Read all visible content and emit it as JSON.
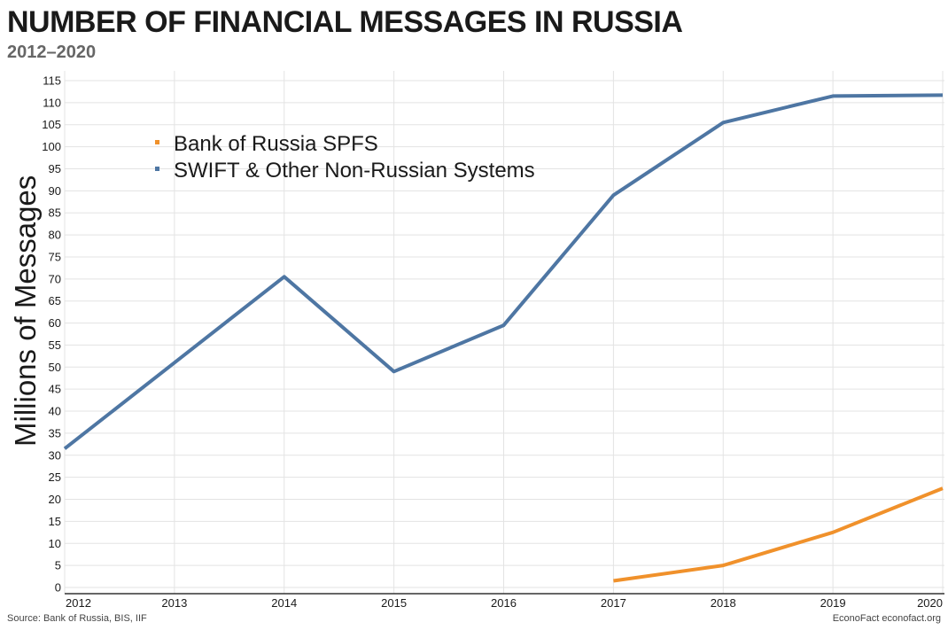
{
  "title": "NUMBER OF FINANCIAL MESSAGES IN RUSSIA",
  "subtitle": "2012–2020",
  "source": "Source: Bank of Russia, BIS, IIF",
  "credit": "EconoFact econofact.org",
  "chart_data": {
    "type": "line",
    "ylabel": "Millions of Messages",
    "xlabel": "",
    "ylim": [
      0,
      115
    ],
    "yticks": [
      0,
      5,
      10,
      15,
      20,
      25,
      30,
      35,
      40,
      45,
      50,
      55,
      60,
      65,
      70,
      75,
      80,
      85,
      90,
      95,
      100,
      105,
      110,
      115
    ],
    "xticks": [
      "2012",
      "2013",
      "2014",
      "2015",
      "2016",
      "2017",
      "2018",
      "2019",
      "2020"
    ],
    "grid": true,
    "legend_position": "top-left",
    "series": [
      {
        "name": "Bank of Russia SPFS",
        "color": "#f0912b",
        "x": [
          "2017",
          "2018",
          "2019",
          "2020"
        ],
        "values": [
          1.5,
          5,
          12.5,
          22.5
        ]
      },
      {
        "name": "SWIFT & Other Non-Russian Systems",
        "color": "#4e76a3",
        "x": [
          "2012",
          "2013",
          "2014",
          "2015",
          "2016",
          "2017",
          "2018",
          "2019",
          "2020"
        ],
        "values": [
          31.5,
          51,
          70.5,
          49,
          59.5,
          89,
          105.5,
          111.5,
          111.7
        ]
      }
    ]
  }
}
